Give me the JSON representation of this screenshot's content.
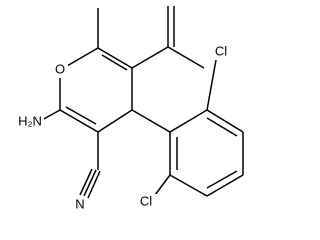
{
  "atoms": [
    {
      "label": "O"
    },
    {
      "label": "H₂N"
    },
    {
      "label": "N"
    },
    {
      "label": "Cl"
    },
    {
      "label": "Cl"
    }
  ]
}
